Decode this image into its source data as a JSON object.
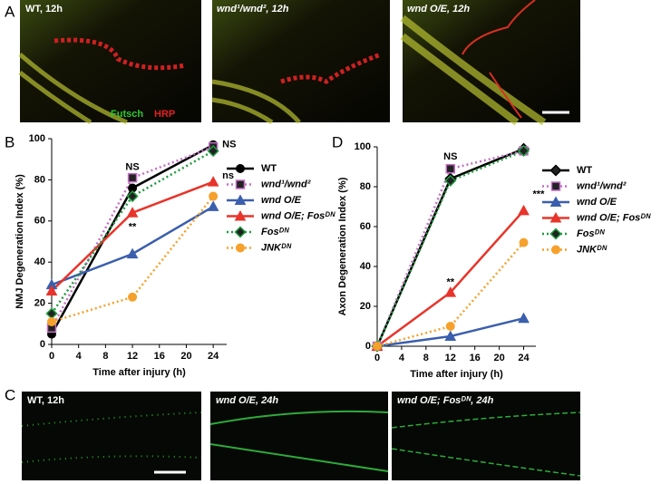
{
  "panels": {
    "A": {
      "letter": "A",
      "images": [
        "WT, 12h",
        "wnd¹/wnd², 12h",
        "wnd O/E,  12h"
      ],
      "stain_green": "Futsch",
      "stain_red": "HRP"
    },
    "B": {
      "letter": "B"
    },
    "C": {
      "letter": "C",
      "images": [
        "WT, 12h",
        "wnd O/E,  24h",
        "wnd O/E; Fosᴰᴺ, 24h"
      ]
    },
    "D": {
      "letter": "D"
    }
  },
  "chart_data": [
    {
      "type": "line",
      "xlabel": "Time after injury (h)",
      "ylabel": "NMJ Degeneration Index (%)",
      "x": [
        0,
        12,
        24
      ],
      "xlim": [
        0,
        26
      ],
      "xticks": [
        0,
        4,
        8,
        12,
        16,
        20,
        24
      ],
      "ylim": [
        0,
        100
      ],
      "yticks": [
        0,
        20,
        40,
        60,
        80,
        100
      ],
      "series": [
        {
          "name": "WT",
          "color": "#000000",
          "marker": "circle",
          "dash": "solid",
          "values": [
            5,
            76,
            97
          ]
        },
        {
          "name": "wnd¹/wnd²",
          "color": "#c46fc6",
          "marker": "square",
          "dash": "dotted",
          "values": [
            8,
            81,
            96
          ]
        },
        {
          "name": "wnd O/E",
          "color": "#3a5fad",
          "marker": "triangle",
          "dash": "solid",
          "values": [
            29,
            44,
            67
          ]
        },
        {
          "name": "wnd O/E; Fosᴰᴺ",
          "color": "#e8342a",
          "marker": "triangle",
          "dash": "solid",
          "values": [
            26,
            64,
            79
          ]
        },
        {
          "name": "Fosᴰᴺ",
          "color": "#1f9a3e",
          "marker": "diamond",
          "dash": "dotted",
          "values": [
            15,
            72,
            94
          ]
        },
        {
          "name": "JNKᴰᴺ",
          "color": "#f6a12b",
          "marker": "circle",
          "dash": "dotted",
          "values": [
            11,
            23,
            72
          ]
        }
      ],
      "annotations": [
        {
          "text": "NS",
          "x": 12,
          "y": 86
        },
        {
          "text": "**",
          "x": 12,
          "y": 57
        },
        {
          "text": "NS",
          "x": 24,
          "y": 97
        },
        {
          "text": "ns",
          "x": 24,
          "y": 82
        }
      ]
    },
    {
      "type": "line",
      "xlabel": "Time after injury (h)",
      "ylabel": "Axon Degeneration Index (%)",
      "x": [
        0,
        12,
        24
      ],
      "xlim": [
        0,
        26
      ],
      "xticks": [
        0,
        4,
        8,
        12,
        16,
        20,
        24
      ],
      "ylim": [
        0,
        100
      ],
      "yticks": [
        0,
        20,
        40,
        60,
        80,
        100
      ],
      "series": [
        {
          "name": "WT",
          "color": "#000000",
          "marker": "diamond",
          "dash": "solid",
          "values": [
            0,
            84,
            99
          ]
        },
        {
          "name": "wnd¹/wnd²",
          "color": "#c46fc6",
          "marker": "square",
          "dash": "dotted",
          "values": [
            0,
            89,
            98
          ]
        },
        {
          "name": "wnd O/E",
          "color": "#3a5fad",
          "marker": "triangle",
          "dash": "solid",
          "values": [
            0,
            5,
            14
          ]
        },
        {
          "name": "wnd O/E; Fosᴰᴺ",
          "color": "#e8342a",
          "marker": "triangle",
          "dash": "solid",
          "values": [
            0,
            27,
            68
          ]
        },
        {
          "name": "Fosᴰᴺ",
          "color": "#1f9a3e",
          "marker": "diamond",
          "dash": "dotted",
          "values": [
            0,
            83,
            98
          ]
        },
        {
          "name": "JNKᴰᴺ",
          "color": "#f6a12b",
          "marker": "circle",
          "dash": "dotted",
          "values": [
            0,
            10,
            52
          ]
        }
      ],
      "annotations": [
        {
          "text": "NS",
          "x": 12,
          "y": 95
        },
        {
          "text": "**",
          "x": 12,
          "y": 32
        },
        {
          "text": "***",
          "x": 24,
          "y": 76
        }
      ]
    }
  ]
}
